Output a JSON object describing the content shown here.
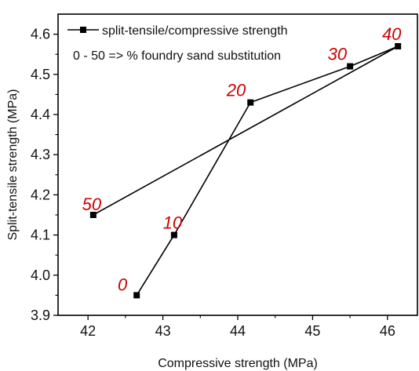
{
  "chart_data": {
    "type": "line",
    "xlabel": "Compressive strength (MPa)",
    "ylabel": "Split-tensile strength (MPa)",
    "xlim": [
      41.6,
      46.4
    ],
    "ylim": [
      3.9,
      4.65
    ],
    "x_ticks": [
      "42",
      "43",
      "44",
      "45",
      "46"
    ],
    "y_ticks": [
      "3.9",
      "4.0",
      "4.1",
      "4.2",
      "4.3",
      "4.4",
      "4.5",
      "4.6"
    ],
    "series": [
      {
        "name": "split-tensile/compressive strength",
        "color": "#000000",
        "marker": "square",
        "points": [
          {
            "x": 42.65,
            "y": 3.95,
            "label": "0"
          },
          {
            "x": 43.15,
            "y": 4.1,
            "label": "10"
          },
          {
            "x": 44.17,
            "y": 4.43,
            "label": "20"
          },
          {
            "x": 45.5,
            "y": 4.52,
            "label": "30"
          },
          {
            "x": 46.14,
            "y": 4.57,
            "label": "40"
          },
          {
            "x": 42.07,
            "y": 4.15,
            "label": "50"
          }
        ]
      }
    ],
    "annotation": "0 - 50 => % foundry sand substitution",
    "annotation_color": "#cc0000",
    "legend_position": "top-left",
    "grid": false
  }
}
